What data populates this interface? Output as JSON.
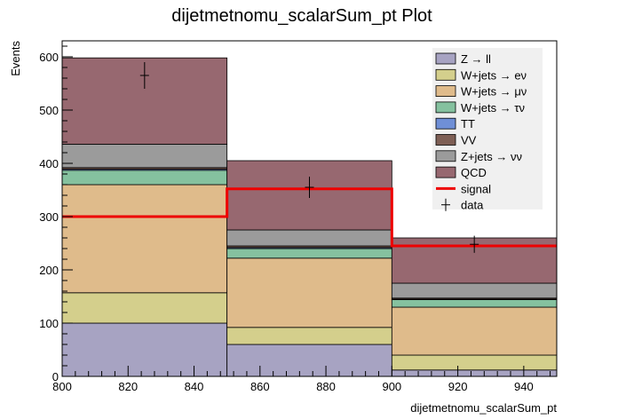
{
  "chart_data": {
    "type": "bar",
    "title": "dijetmetnomu_scalarSum_pt Plot",
    "xlabel": "dijetmetnomu_scalarSum_pt",
    "ylabel": "Events",
    "xlim": [
      800,
      950
    ],
    "ylim": [
      0,
      630
    ],
    "xticks": [
      800,
      820,
      840,
      860,
      880,
      900,
      920,
      940
    ],
    "yticks": [
      0,
      100,
      200,
      300,
      400,
      500,
      600
    ],
    "bin_edges": [
      800,
      850,
      900,
      950
    ],
    "stacked": true,
    "series": [
      {
        "name": "Z → ll",
        "color": "#a7a3c2",
        "values": [
          100,
          60,
          12
        ]
      },
      {
        "name": "W+jets → eν",
        "color": "#d4cf8c",
        "values": [
          57,
          32,
          28
        ]
      },
      {
        "name": "W+jets → μν",
        "color": "#dfbb8b",
        "values": [
          203,
          130,
          90
        ]
      },
      {
        "name": "W+jets → τν",
        "color": "#85c19f",
        "values": [
          27,
          18,
          14
        ]
      },
      {
        "name": "TT",
        "color": "#6f8fd6",
        "values": [
          2,
          2,
          1
        ]
      },
      {
        "name": "VV",
        "color": "#7e5f55",
        "values": [
          3,
          3,
          2
        ]
      },
      {
        "name": "Z+jets → νν",
        "color": "#9b9b9b",
        "values": [
          44,
          30,
          28
        ]
      },
      {
        "name": "QCD",
        "color": "#976870",
        "values": [
          162,
          130,
          85
        ]
      }
    ],
    "signal": {
      "name": "signal",
      "color": "#ee0000",
      "values": [
        300,
        352,
        245
      ]
    },
    "data": {
      "name": "data",
      "x": [
        825,
        875,
        925
      ],
      "y": [
        565,
        355,
        248
      ],
      "yerr": [
        25,
        20,
        16
      ]
    },
    "legend_position": "top-right",
    "grid": false
  }
}
